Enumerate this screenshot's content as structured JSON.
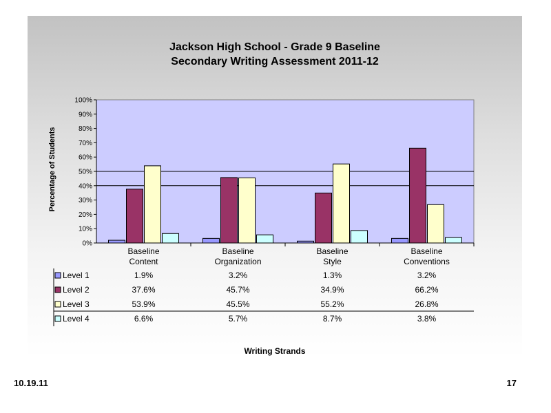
{
  "slide": {
    "date": "10.19.11",
    "page_number": "17"
  },
  "colors": {
    "plot_area": "#ccccff",
    "level_1": "#9999ff",
    "level_2": "#993366",
    "level_3": "#ffffcc",
    "level_4": "#ccffff"
  },
  "chart_data": {
    "type": "bar",
    "title": "Jackson High School - Grade 9 Baseline",
    "subtitle": "Secondary Writing Assessment 2011-12",
    "xlabel": "Writing Strands",
    "ylabel": "Percentage of Students",
    "ylim": [
      0,
      100
    ],
    "yticks": [
      "0%",
      "10%",
      "20%",
      "30%",
      "40%",
      "50%",
      "60%",
      "70%",
      "80%",
      "90%",
      "100%"
    ],
    "categories": [
      [
        "Baseline",
        "Content"
      ],
      [
        "Baseline",
        "Organization"
      ],
      [
        "Baseline",
        "Style"
      ],
      [
        "Baseline",
        "Conventions"
      ]
    ],
    "series": [
      {
        "name": "Level 1",
        "values": [
          1.9,
          3.2,
          1.3,
          3.2
        ],
        "labels": [
          "1.9%",
          "3.2%",
          "1.3%",
          "3.2%"
        ]
      },
      {
        "name": "Level 2",
        "values": [
          37.6,
          45.7,
          34.9,
          66.2
        ],
        "labels": [
          "37.6%",
          "45.7%",
          "34.9%",
          "66.2%"
        ]
      },
      {
        "name": "Level 3",
        "values": [
          53.9,
          45.5,
          55.2,
          26.8
        ],
        "labels": [
          "53.9%",
          "45.5%",
          "55.2%",
          "26.8%"
        ]
      },
      {
        "name": "Level 4",
        "values": [
          6.6,
          5.7,
          8.7,
          3.8
        ],
        "labels": [
          "6.6%",
          "5.7%",
          "8.7%",
          "3.8%"
        ]
      }
    ],
    "gridlines": [
      40,
      50
    ],
    "legend": "data table below chart"
  }
}
